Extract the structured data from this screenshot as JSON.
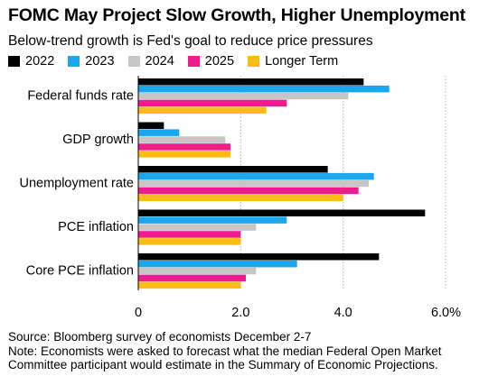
{
  "title": "FOMC May Project Slow Growth, Higher Unemployment",
  "subtitle": "Below-trend growth is Fed's goal to reduce price pressures",
  "colors": {
    "2022": "#000000",
    "2023": "#1aa7ee",
    "2024": "#c6c6c6",
    "2025": "#ef1c8f",
    "Longer Term": "#fbbd13"
  },
  "chart_data": {
    "type": "bar",
    "orientation": "horizontal",
    "categories": [
      "Federal funds rate",
      "GDP growth",
      "Unemployment rate",
      "PCE inflation",
      "Core PCE inflation"
    ],
    "series": [
      {
        "name": "2022",
        "color": "#000000",
        "values": [
          4.4,
          0.5,
          3.7,
          5.6,
          4.7
        ]
      },
      {
        "name": "2023",
        "color": "#1aa7ee",
        "values": [
          4.9,
          0.8,
          4.6,
          2.9,
          3.1
        ]
      },
      {
        "name": "2024",
        "color": "#c6c6c6",
        "values": [
          4.1,
          1.7,
          4.5,
          2.3,
          2.3
        ]
      },
      {
        "name": "2025",
        "color": "#ef1c8f",
        "values": [
          2.9,
          1.8,
          4.3,
          2.0,
          2.1
        ]
      },
      {
        "name": "Longer Term",
        "color": "#fbbd13",
        "values": [
          2.5,
          1.8,
          4.0,
          2.0,
          2.0
        ]
      }
    ],
    "xlim": [
      0,
      6
    ],
    "xticks": [
      {
        "value": 0,
        "label": "0"
      },
      {
        "value": 2,
        "label": "2.0"
      },
      {
        "value": 4,
        "label": "4.0"
      },
      {
        "value": 6,
        "label": "6.0%"
      }
    ],
    "grid": true,
    "legend": "top-left"
  },
  "source": "Source: Bloomberg survey of economists December 2-7",
  "note": "Note: Economists were asked to forecast what the median Federal Open Market Committee participant would estimate in the Summary of Economic Projections."
}
